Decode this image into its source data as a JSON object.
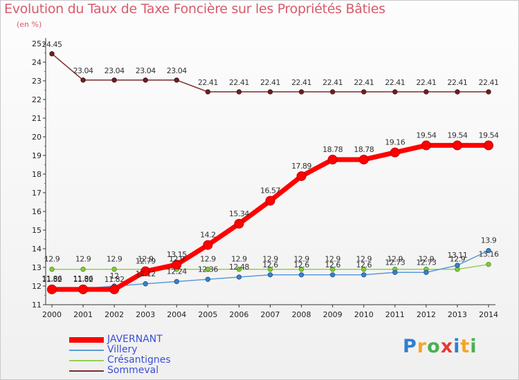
{
  "header": {
    "title": "Evolution du Taux de Taxe Foncière sur les Propriétés Bâties",
    "unit": "(en %)"
  },
  "logo": {
    "letters": [
      "P",
      "r",
      "o",
      "x",
      "i",
      "t",
      "i"
    ],
    "colors": [
      "#2f7fd3",
      "#f5a623",
      "#4caf50",
      "#e53935",
      "#2f7fd3",
      "#f5a623",
      "#4caf50"
    ]
  },
  "chart_data": {
    "type": "line",
    "title": "Evolution du Taux de Taxe Foncière sur les Propriétés Bâties",
    "ylabel": "(en %)",
    "xlabel": "",
    "x": [
      2000,
      2001,
      2002,
      2003,
      2004,
      2005,
      2006,
      2007,
      2008,
      2009,
      2010,
      2011,
      2012,
      2013,
      2014
    ],
    "ylim": [
      11,
      25
    ],
    "yticks": [
      11,
      12,
      13,
      14,
      15,
      16,
      17,
      18,
      19,
      20,
      21,
      22,
      23,
      24,
      25
    ],
    "grid": false,
    "legend_position": "bottom-left",
    "series": [
      {
        "name": "JAVERNANT",
        "color": "#ff0000",
        "values": [
          11.82,
          11.82,
          11.82,
          12.79,
          13.15,
          14.2,
          15.34,
          16.57,
          17.89,
          18.78,
          18.78,
          19.16,
          19.54,
          19.54,
          19.54
        ],
        "labels": [
          "11.82",
          "11.82",
          "11.82",
          "12.79",
          "13.15",
          "14.2",
          "15.34",
          "16.57",
          "17.89",
          "18.78",
          "18.78",
          "19.16",
          "19.54",
          "19.54",
          "19.54"
        ]
      },
      {
        "name": "Villery",
        "color": "#5b9bd5",
        "values": [
          11.86,
          11.86,
          12.0,
          12.12,
          12.24,
          12.36,
          12.48,
          12.6,
          12.6,
          12.6,
          12.6,
          12.73,
          12.73,
          13.11,
          13.9
        ],
        "labels": [
          "11.86",
          "11.86",
          "12",
          "12.12",
          "12.24",
          "12.36",
          "12.48",
          "12.6",
          "12.6",
          "12.6",
          "12.6",
          "12.73",
          "12.73",
          "13.11",
          "13.9"
        ]
      },
      {
        "name": "Crésantignes",
        "color": "#92d050",
        "values": [
          12.9,
          12.9,
          12.9,
          12.9,
          12.9,
          12.9,
          12.9,
          12.9,
          12.9,
          12.9,
          12.9,
          12.9,
          12.9,
          12.9,
          13.16
        ],
        "labels": [
          "12.9",
          "12.9",
          "12.9",
          "12.9",
          "12.9",
          "12.9",
          "12.9",
          "12.9",
          "12.9",
          "12.9",
          "12.9",
          "12.9",
          "12.9",
          "12.9",
          "13.16"
        ]
      },
      {
        "name": "Sommeval",
        "color": "#7b2b2b",
        "values": [
          24.45,
          23.04,
          23.04,
          23.04,
          23.04,
          22.41,
          22.41,
          22.41,
          22.41,
          22.41,
          22.41,
          22.41,
          22.41,
          22.41,
          22.41
        ],
        "labels": [
          "24.45",
          "23.04",
          "23.04",
          "23.04",
          "23.04",
          "22.41",
          "22.41",
          "22.41",
          "22.41",
          "22.41",
          "22.41",
          "22.41",
          "22.41",
          "22.41",
          "22.41"
        ]
      }
    ]
  }
}
